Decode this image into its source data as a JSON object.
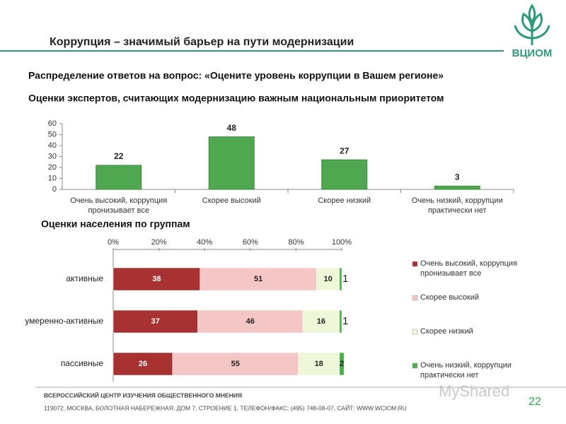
{
  "header": {
    "title": "Коррупция – значимый барьер на пути модернизации",
    "logo": "ВЦИОМ"
  },
  "subtitle": "Распределение ответов на вопрос: «Оцените уровень коррупции в Вашем регионе»",
  "chart_data": [
    {
      "type": "bar",
      "title": "Оценки экспертов, считающих модернизацию важным национальным приоритетом",
      "categories": [
        "Очень высокий, коррупция пронизывает все",
        "Скорее высокий",
        "Скорее низкий",
        "Очень низкий, коррупции практически нет"
      ],
      "values": [
        22,
        48,
        27,
        3
      ],
      "color": "#4fa84f",
      "ylim": [
        0,
        60
      ],
      "yticks": [
        0,
        10,
        20,
        30,
        40,
        50,
        60
      ]
    },
    {
      "type": "stacked-hbar",
      "title": "Оценки населения по группам",
      "categories": [
        "активные",
        "умеренно-активные",
        "пассивные"
      ],
      "series": [
        {
          "name": "Очень высокий, коррупция пронизывает все",
          "color": "#a83232",
          "values": [
            38,
            37,
            26
          ]
        },
        {
          "name": "Скорее высокий",
          "color": "#f5c6c6",
          "values": [
            51,
            46,
            55
          ]
        },
        {
          "name": "Скорее низкий",
          "color": "#eef7d8",
          "values": [
            10,
            16,
            18
          ]
        },
        {
          "name": "Очень низкий, коррупции практически нет",
          "color": "#4cb04c",
          "values": [
            1,
            1,
            2
          ]
        }
      ],
      "xlim": [
        0,
        100
      ],
      "xticks": [
        {
          "value": 0,
          "label": "0%"
        },
        {
          "value": 20,
          "label": "20%"
        },
        {
          "value": 40,
          "label": "40%"
        },
        {
          "value": 60,
          "label": "60%"
        },
        {
          "value": 80,
          "label": "80%"
        },
        {
          "value": 100,
          "label": "100%"
        }
      ],
      "legend": "right"
    }
  ],
  "footer": {
    "line1": "ВСЕРОССИЙСКИЙ ЦЕНТР ИЗУЧЕНИЯ ОБЩЕСТВЕННОГО МНЕНИЯ",
    "line2": "119072, МОСКВА, БОЛОТНАЯ НАБЕРЕЖНАЯ, ДОМ 7, СТРОЕНИЕ 1, ТЕЛЕФОН/ФАКС: (495) 748-08-07, САЙТ: WWW.WCIOM.RU",
    "page": "22",
    "watermark": "MyShared"
  }
}
